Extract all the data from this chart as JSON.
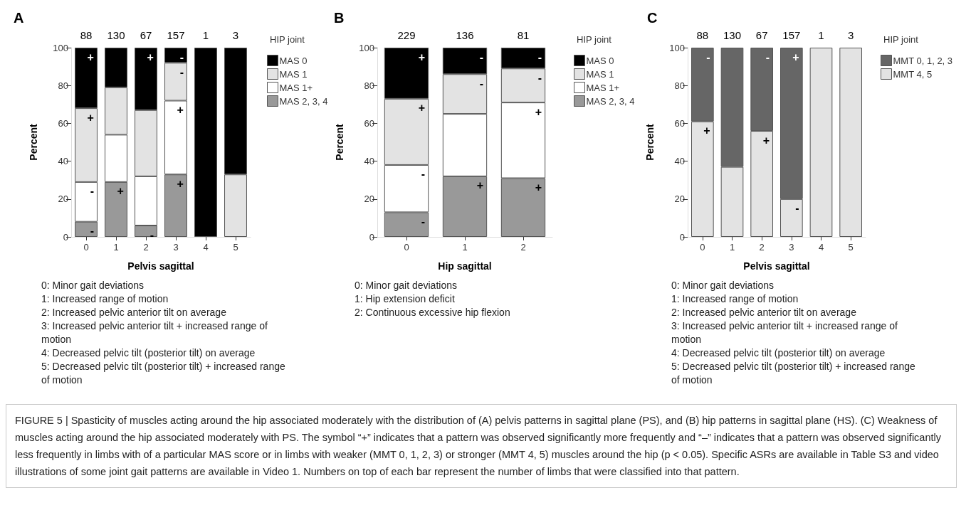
{
  "chart_data": [
    {
      "type": "bar",
      "stacked": true,
      "title": "A",
      "xlabel": "Pelvis sagittal",
      "ylabel": "Percent",
      "legend": "right",
      "legend_title": "HIP joint",
      "grid": false,
      "categories": [
        "0",
        "1",
        "2",
        "3",
        "4",
        "5"
      ],
      "ylim": [
        0,
        100
      ],
      "yticks": [
        0,
        20,
        40,
        60,
        80,
        100
      ],
      "series": [
        {
          "name": "MAS 2, 3, 4",
          "color": "#999999",
          "values": [
            8,
            29,
            6,
            33,
            0,
            0
          ],
          "value_labels": [
            "-",
            "+",
            "-",
            "+",
            null,
            null
          ]
        },
        {
          "name": "MAS 1+",
          "color": "#ffffff",
          "values": [
            21,
            25,
            26,
            39,
            0,
            0
          ],
          "value_labels": [
            "-",
            null,
            null,
            "+",
            null,
            null
          ]
        },
        {
          "name": "MAS 1",
          "color": "#e3e3e3",
          "values": [
            39,
            25,
            35,
            20,
            0,
            33
          ],
          "value_labels": [
            "+",
            null,
            null,
            "-",
            null,
            null
          ]
        },
        {
          "name": "MAS 0",
          "color": "#000000",
          "values": [
            32,
            21,
            33,
            8,
            100,
            67
          ],
          "value_labels": [
            "+",
            null,
            "+",
            "-",
            null,
            null
          ]
        }
      ],
      "annotations": [
        "88",
        "130",
        "67",
        "157",
        "1",
        "3",
        "0: Minor gait deviations",
        "1: Increased range of motion",
        "2: Increased pelvic anterior tilt on average",
        "3: Increased pelvic anterior tilt + increased range of motion",
        "4: Decreased pelvic tilt (posterior tilt) on average",
        "5: Decreased pelvic tilt (posterior tilt) + increased range of motion"
      ]
    },
    {
      "type": "bar",
      "stacked": true,
      "title": "B",
      "xlabel": "Hip sagittal",
      "ylabel": "Percent",
      "legend": "right",
      "legend_title": "HIP joint",
      "grid": false,
      "categories": [
        "0",
        "1",
        "2"
      ],
      "ylim": [
        0,
        100
      ],
      "yticks": [
        0,
        20,
        40,
        60,
        80,
        100
      ],
      "series": [
        {
          "name": "MAS 2, 3, 4",
          "color": "#999999",
          "values": [
            13,
            32,
            31
          ],
          "value_labels": [
            "-",
            "+",
            "+"
          ]
        },
        {
          "name": "MAS 1+",
          "color": "#ffffff",
          "values": [
            25,
            33,
            40
          ],
          "value_labels": [
            "-",
            null,
            "+"
          ]
        },
        {
          "name": "MAS 1",
          "color": "#e3e3e3",
          "values": [
            35,
            21,
            18
          ],
          "value_labels": [
            "+",
            "-",
            "-"
          ]
        },
        {
          "name": "MAS 0",
          "color": "#000000",
          "values": [
            27,
            14,
            11
          ],
          "value_labels": [
            "+",
            "-",
            "-"
          ]
        }
      ],
      "annotations": [
        "229",
        "136",
        "81",
        "0: Minor gait deviations",
        "1: Hip extension deficit",
        "2: Continuous excessive hip flexion"
      ]
    },
    {
      "type": "bar",
      "stacked": true,
      "title": "C",
      "xlabel": "Pelvis sagittal",
      "ylabel": "Percent",
      "legend": "right",
      "legend_title": "HIP joint",
      "grid": false,
      "categories": [
        "0",
        "1",
        "2",
        "3",
        "4",
        "5"
      ],
      "ylim": [
        0,
        100
      ],
      "yticks": [
        0,
        20,
        40,
        60,
        80,
        100
      ],
      "series": [
        {
          "name": "MMT 4, 5",
          "color": "#e3e3e3",
          "values": [
            61,
            37,
            56,
            20,
            100,
            100
          ],
          "value_labels": [
            "+",
            null,
            "+",
            "-",
            null,
            null
          ]
        },
        {
          "name": "MMT 0, 1, 2, 3",
          "color": "#666666",
          "values": [
            39,
            63,
            44,
            80,
            0,
            0
          ],
          "value_labels": [
            "-",
            null,
            "-",
            "+",
            null,
            null
          ]
        }
      ],
      "annotations": [
        "88",
        "130",
        "67",
        "157",
        "1",
        "3",
        "0: Minor gait deviations",
        "1: Increased range of motion",
        "2: Increased pelvic anterior tilt on average",
        "3: Increased pelvic anterior tilt + increased range of motion",
        "4: Decreased pelvic tilt (posterior tilt) on average",
        "5: Decreased pelvic tilt (posterior tilt) + increased range of motion",
        "FIGURE 5 | Spasticity of muscles acting around the hip associated moderately with the distribution of (A) pelvis patterns in sagittal plane (PS), and (B) hip patterns in sagittal plane (HS). (C) Weakness of muscles acting around the hip associated moderately with PS. The symbol “+” indicates that a pattern was observed significantly more frequently and “–” indicates that a pattern was observed significantly less frequently in limbs with of a particular MAS score or in limbs with weaker (MMT 0, 1, 2, 3) or stronger (MMT 4, 5) muscles around the hip (p < 0.05). Specific ASRs are available in Table S3 and video illustrations of some joint gait patterns are available in Video 1. Numbers on top of each bar represent the number of limbs that were classified into that pattern."
      ]
    }
  ]
}
